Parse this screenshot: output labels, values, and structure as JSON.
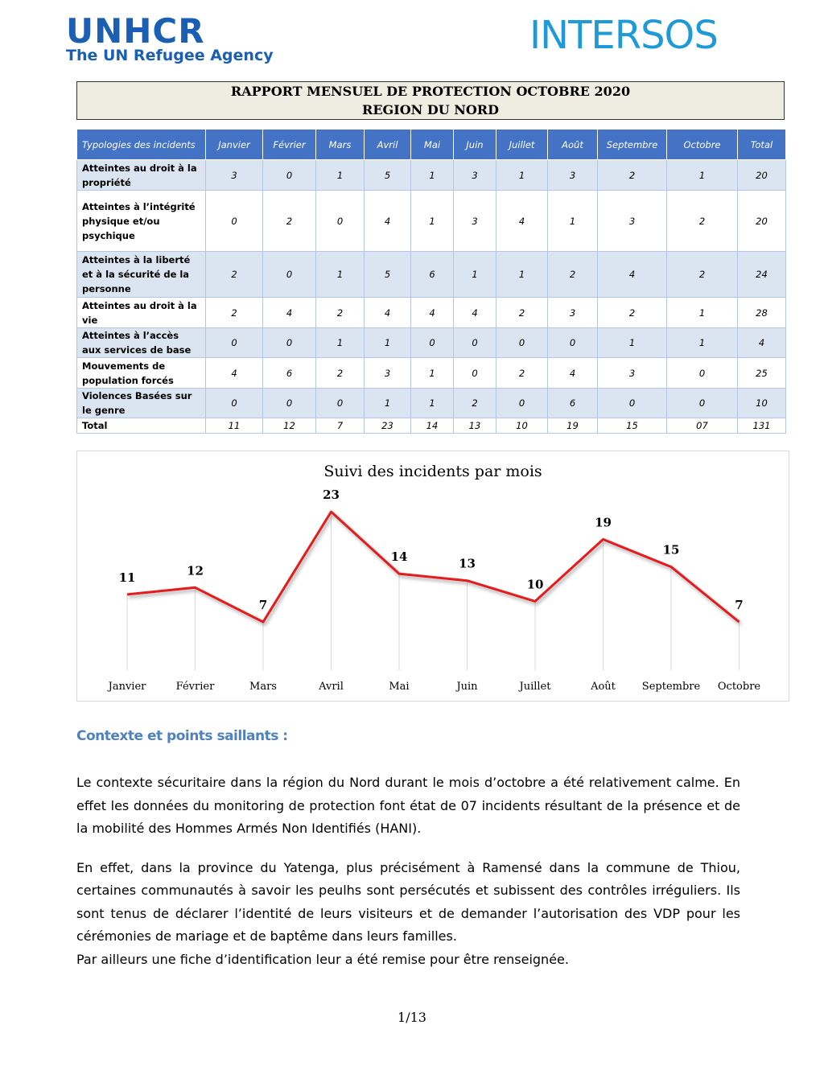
{
  "header": {
    "left_logo": "UNHCR",
    "left_tagline": "The UN Refugee Agency",
    "right_logo": "INTERSOS"
  },
  "report_title": [
    "RAPPORT MENSUEL DE PROTECTION OCTOBRE 2020",
    "REGION DU NORD"
  ],
  "table": {
    "header": [
      "Typologies des incidents",
      "Janvier",
      "Février",
      "Mars",
      "Avril",
      "Mai",
      "Juin",
      "Juillet",
      "Août",
      "Septembre",
      "Octobre",
      "Total"
    ],
    "rows": [
      [
        "Atteintes au droit à la propriété",
        "3",
        "0",
        "1",
        "5",
        "1",
        "3",
        "1",
        "3",
        "2",
        "1",
        "20"
      ],
      [
        "Atteintes à l’intégrité physique et/ou psychique",
        "0",
        "2",
        "0",
        "4",
        "1",
        "3",
        "4",
        "1",
        "3",
        "2",
        "20"
      ],
      [
        "Atteintes à la liberté et à la sécurité de la personne",
        "2",
        "0",
        "1",
        "5",
        "6",
        "1",
        "1",
        "2",
        "4",
        "2",
        "24"
      ],
      [
        "Atteintes au droit à la vie",
        "2",
        "4",
        "2",
        "4",
        "4",
        "4",
        "2",
        "3",
        "2",
        "1",
        "28"
      ],
      [
        "Atteintes à l’accès aux services de base",
        "0",
        "0",
        "1",
        "1",
        "0",
        "0",
        "0",
        "0",
        "1",
        "1",
        "4"
      ],
      [
        "Mouvements de population forcés",
        "4",
        "6",
        "2",
        "3",
        "1",
        "0",
        "2",
        "4",
        "3",
        "0",
        "25"
      ],
      [
        "Violences Basées sur le genre",
        "0",
        "0",
        "0",
        "1",
        "1",
        "2",
        "0",
        "6",
        "0",
        "0",
        "10"
      ],
      [
        "Total",
        "11",
        "12",
        "7",
        "23",
        "14",
        "13",
        "10",
        "19",
        "15",
        "07",
        "131"
      ]
    ]
  },
  "chart_data": {
    "type": "line",
    "title": "Suivi des incidents par mois",
    "categories": [
      "Janvier",
      "Février",
      "Mars",
      "Avril",
      "Mai",
      "Juin",
      "Juillet",
      "Août",
      "Septembre",
      "Octobre"
    ],
    "values": [
      11,
      12,
      7,
      23,
      14,
      13,
      10,
      19,
      15,
      7
    ],
    "color": "#e41a1c"
  },
  "section": {
    "heading": "Contexte et points saillants :",
    "paragraphs": [
      "Le contexte sécuritaire dans la région du Nord durant le mois d’octobre a été relativement calme. En effet les données du monitoring de protection font état de 07 incidents résultant de la présence et de la mobilité des Hommes Armés Non Identifiés (HANI).",
      "En effet, dans la province du Yatenga, plus précisément à Ramensé dans la commune de Thiou, certaines communautés à savoir les peulhs sont persécutés et subissent des contrôles irréguliers. Ils sont tenus de déclarer l’identité de leurs visiteurs et de demander l’autorisation des VDP pour les cérémonies de mariage et de baptême dans leurs familles.",
      "Par ailleurs une fiche d’identification leur a été remise pour être renseignée."
    ]
  },
  "footer": {
    "page": "1/13"
  }
}
